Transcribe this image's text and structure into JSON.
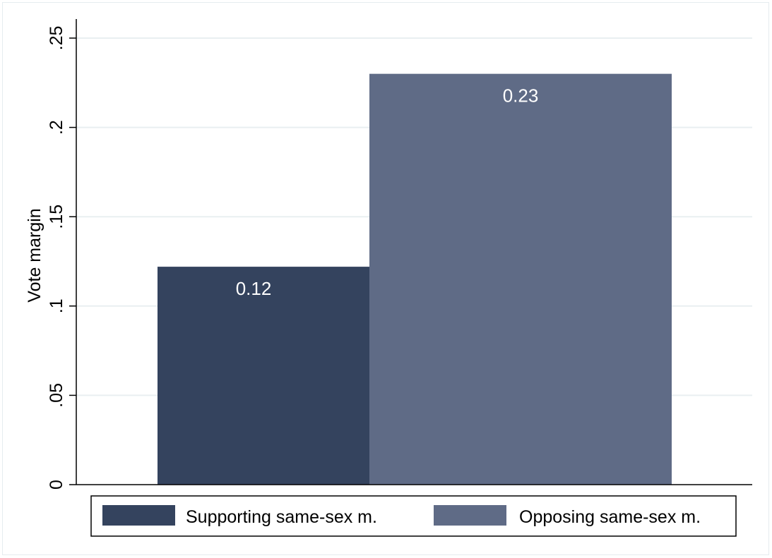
{
  "chart_data": {
    "type": "bar",
    "title": "",
    "xlabel": "",
    "ylabel": "Vote margin",
    "ylim": [
      0,
      0.25
    ],
    "yticks": [
      {
        "value": 0,
        "label": "0"
      },
      {
        "value": 0.05,
        "label": ".05"
      },
      {
        "value": 0.1,
        "label": ".1"
      },
      {
        "value": 0.15,
        "label": ".15"
      },
      {
        "value": 0.2,
        "label": ".2"
      },
      {
        "value": 0.25,
        "label": ".25"
      }
    ],
    "grid": true,
    "legend_position": "bottom",
    "series": [
      {
        "name": "Supporting same-sex m.",
        "values": [
          0.122
        ],
        "data_label": "0.12",
        "color": "#34435e"
      },
      {
        "name": "Opposing same-sex m.",
        "values": [
          0.23
        ],
        "data_label": "0.23",
        "color": "#5f6b86"
      }
    ],
    "colors": {
      "grid": "#e9eff1",
      "axis": "#000000",
      "data_label": "#ffffff",
      "text": "#000000"
    }
  }
}
